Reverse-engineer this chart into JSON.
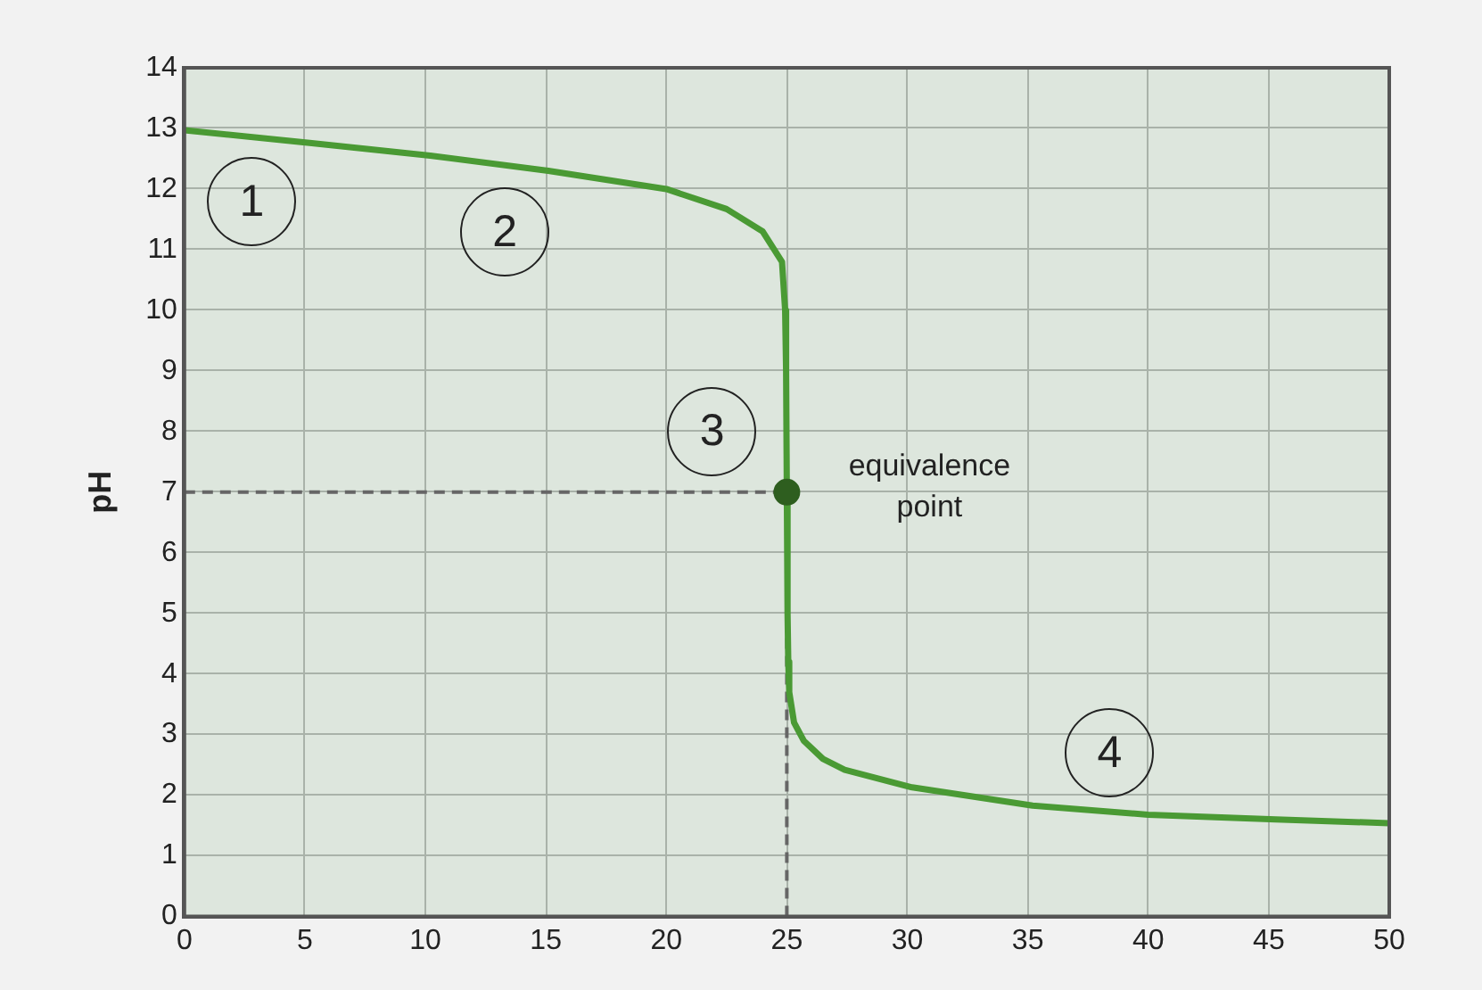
{
  "chart_data": {
    "type": "line",
    "ylabel": "pH",
    "xlim": [
      0,
      50
    ],
    "xticks": [
      0,
      5,
      10,
      15,
      20,
      25,
      30,
      35,
      40,
      45,
      50
    ],
    "ylim": [
      0,
      14
    ],
    "yticks": [
      0,
      1,
      2,
      3,
      4,
      5,
      6,
      7,
      8,
      9,
      10,
      11,
      12,
      13,
      14
    ],
    "grid": true,
    "legend": false,
    "marker": "none",
    "line_style": "solid",
    "series": [
      {
        "color": "#4a9a34",
        "x": [
          0,
          5.2,
          10.2,
          15.1,
          20,
          22.5,
          24,
          24.8,
          24.93,
          24.97,
          25,
          25.03,
          25.06,
          25.1,
          25.3,
          25.7,
          26.5,
          27.4,
          30.2,
          35.2,
          40,
          45.3,
          50
        ],
        "values": [
          12.97,
          12.76,
          12.55,
          12.3,
          12.0,
          11.67,
          11.3,
          10.8,
          10.0,
          9.0,
          7.0,
          5.0,
          4.2,
          3.7,
          3.2,
          2.9,
          2.6,
          2.42,
          2.13,
          1.83,
          1.68,
          1.6,
          1.54
        ]
      },
      {
        "type": "scatter",
        "color": "#2e5e1f",
        "marker": "circle",
        "x": [
          25
        ],
        "values": [
          7
        ]
      }
    ],
    "ref_lines": [
      {
        "axis": "y",
        "value": 7,
        "color": "#666666",
        "line_style": "dashed"
      },
      {
        "axis": "x",
        "value": 25,
        "color": "#666666",
        "line_style": "dashed"
      }
    ],
    "annotations": [
      "1",
      "2",
      "3",
      "4",
      {
        "text": "equivalence point",
        "x": 25,
        "y": 7
      }
    ]
  }
}
